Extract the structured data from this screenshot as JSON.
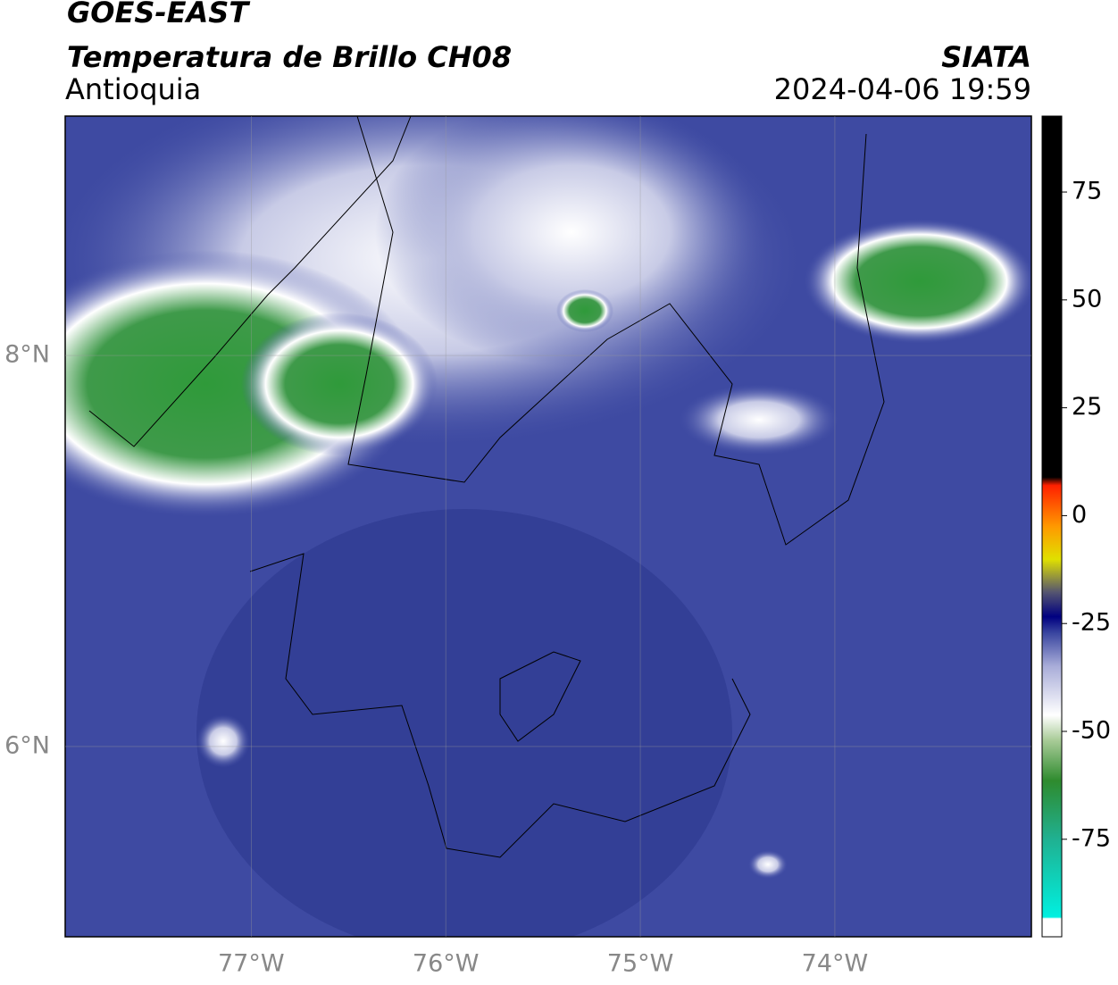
{
  "header": {
    "title": "GOES-EAST",
    "subtitle": "Temperatura de Brillo CH08",
    "region": "Antioquia",
    "source": "SIATA",
    "datetime": "2024-04-06 19:59"
  },
  "map": {
    "xlim": [
      -77.956,
      -72.99
    ],
    "ylim": [
      5.027,
      9.224
    ],
    "xticks": [
      {
        "value": -77,
        "label": "77°W"
      },
      {
        "value": -76,
        "label": "76°W"
      },
      {
        "value": -75,
        "label": "75°W"
      },
      {
        "value": -74,
        "label": "74°W"
      }
    ],
    "yticks": [
      {
        "value": 8,
        "label": "8°N"
      },
      {
        "value": 6,
        "label": "6°N"
      }
    ]
  },
  "colorbar": {
    "clim": [
      -97.6,
      92.6
    ],
    "ticks": [
      75,
      50,
      25,
      0,
      -25,
      -50,
      -75
    ]
  }
}
